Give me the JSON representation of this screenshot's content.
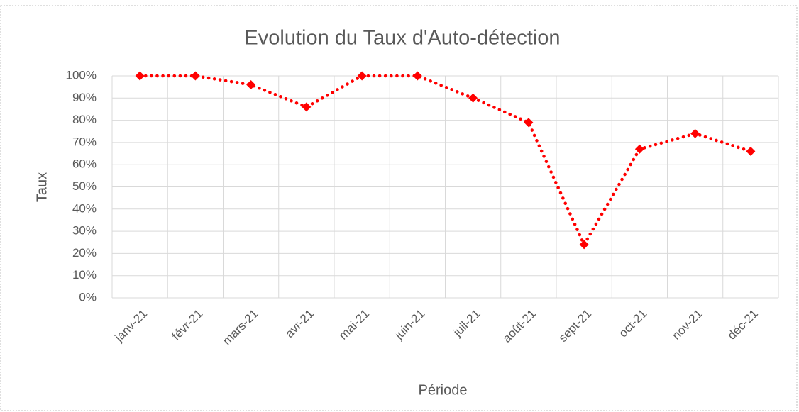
{
  "chart_data": {
    "type": "line",
    "title": "Evolution du Taux d'Auto-détection",
    "x_label": "Période",
    "y_label": "Taux",
    "categories": [
      "janv-21",
      "févr-21",
      "mars-21",
      "avr-21",
      "mai-21",
      "juin-21",
      "juil-21",
      "août-21",
      "sept-21",
      "oct-21",
      "nov-21",
      "déc-21"
    ],
    "series": [
      {
        "name": "Taux",
        "color": "#ff0000",
        "values": [
          100,
          100,
          96,
          86,
          100,
          100,
          90,
          79,
          24,
          67,
          74,
          66
        ]
      }
    ],
    "ylim": [
      0,
      100
    ],
    "yticks": [
      {
        "value": 0,
        "label": "0%"
      },
      {
        "value": 10,
        "label": "10%"
      },
      {
        "value": 20,
        "label": "20%"
      },
      {
        "value": 30,
        "label": "30%"
      },
      {
        "value": 40,
        "label": "40%"
      },
      {
        "value": 50,
        "label": "50%"
      },
      {
        "value": 60,
        "label": "60%"
      },
      {
        "value": 70,
        "label": "70%"
      },
      {
        "value": 80,
        "label": "80%"
      },
      {
        "value": 90,
        "label": "90%"
      },
      {
        "value": 100,
        "label": "100%"
      }
    ],
    "grid": true
  }
}
